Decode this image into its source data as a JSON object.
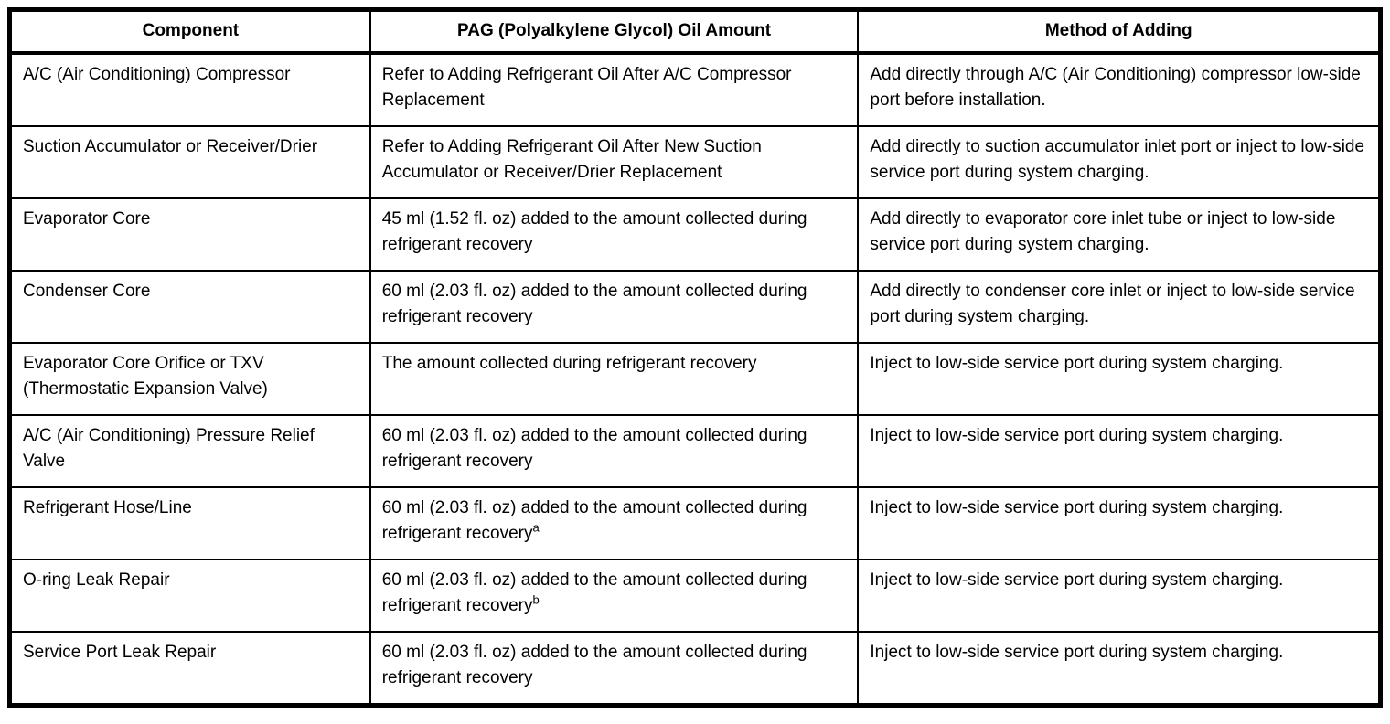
{
  "table": {
    "headers": [
      "Component",
      "PAG (Polyalkylene Glycol) Oil Amount",
      "Method of Adding"
    ],
    "rows": [
      {
        "component": "A/C (Air Conditioning) Compressor",
        "amount": "Refer to Adding Refrigerant Oil After A/C Compressor Replacement",
        "note": "",
        "method": "Add directly through A/C (Air Conditioning) compressor low-side port before installation."
      },
      {
        "component": "Suction Accumulator or Receiver/Drier",
        "amount": "Refer to Adding Refrigerant Oil After New Suction Accumulator or Receiver/Drier Replacement",
        "note": "",
        "method": "Add directly to suction accumulator inlet port or inject to low-side service port during system charging."
      },
      {
        "component": "Evaporator Core",
        "amount": "45 ml (1.52 fl. oz) added to the amount collected during refrigerant recovery",
        "note": "",
        "method": "Add directly to evaporator core inlet tube or inject to low-side service port during system charging."
      },
      {
        "component": "Condenser Core",
        "amount": "60 ml (2.03 fl. oz) added to the amount collected during refrigerant recovery",
        "note": "",
        "method": "Add directly to condenser core inlet or inject to low-side service port during system charging."
      },
      {
        "component": "Evaporator Core Orifice or TXV (Thermostatic Expansion Valve)",
        "amount": "The amount collected during refrigerant recovery",
        "note": "",
        "method": "Inject to low-side service port during system charging."
      },
      {
        "component": "A/C (Air Conditioning) Pressure Relief Valve",
        "amount": "60 ml (2.03 fl. oz) added to the amount collected during refrigerant recovery",
        "note": "",
        "method": "Inject to low-side service port during system charging."
      },
      {
        "component": "Refrigerant Hose/Line",
        "amount": "60 ml (2.03 fl. oz) added to the amount collected during refrigerant recovery",
        "note": "a",
        "method": "Inject to low-side service port during system charging."
      },
      {
        "component": "O-ring Leak Repair",
        "amount": "60 ml (2.03 fl. oz) added to the amount collected during refrigerant recovery",
        "note": "b",
        "method": "Inject to low-side service port during system charging."
      },
      {
        "component": "Service Port Leak Repair",
        "amount": "60 ml (2.03 fl. oz) added to the amount collected during refrigerant recovery",
        "note": "",
        "method": "Inject to low-side service port during system charging."
      }
    ]
  }
}
